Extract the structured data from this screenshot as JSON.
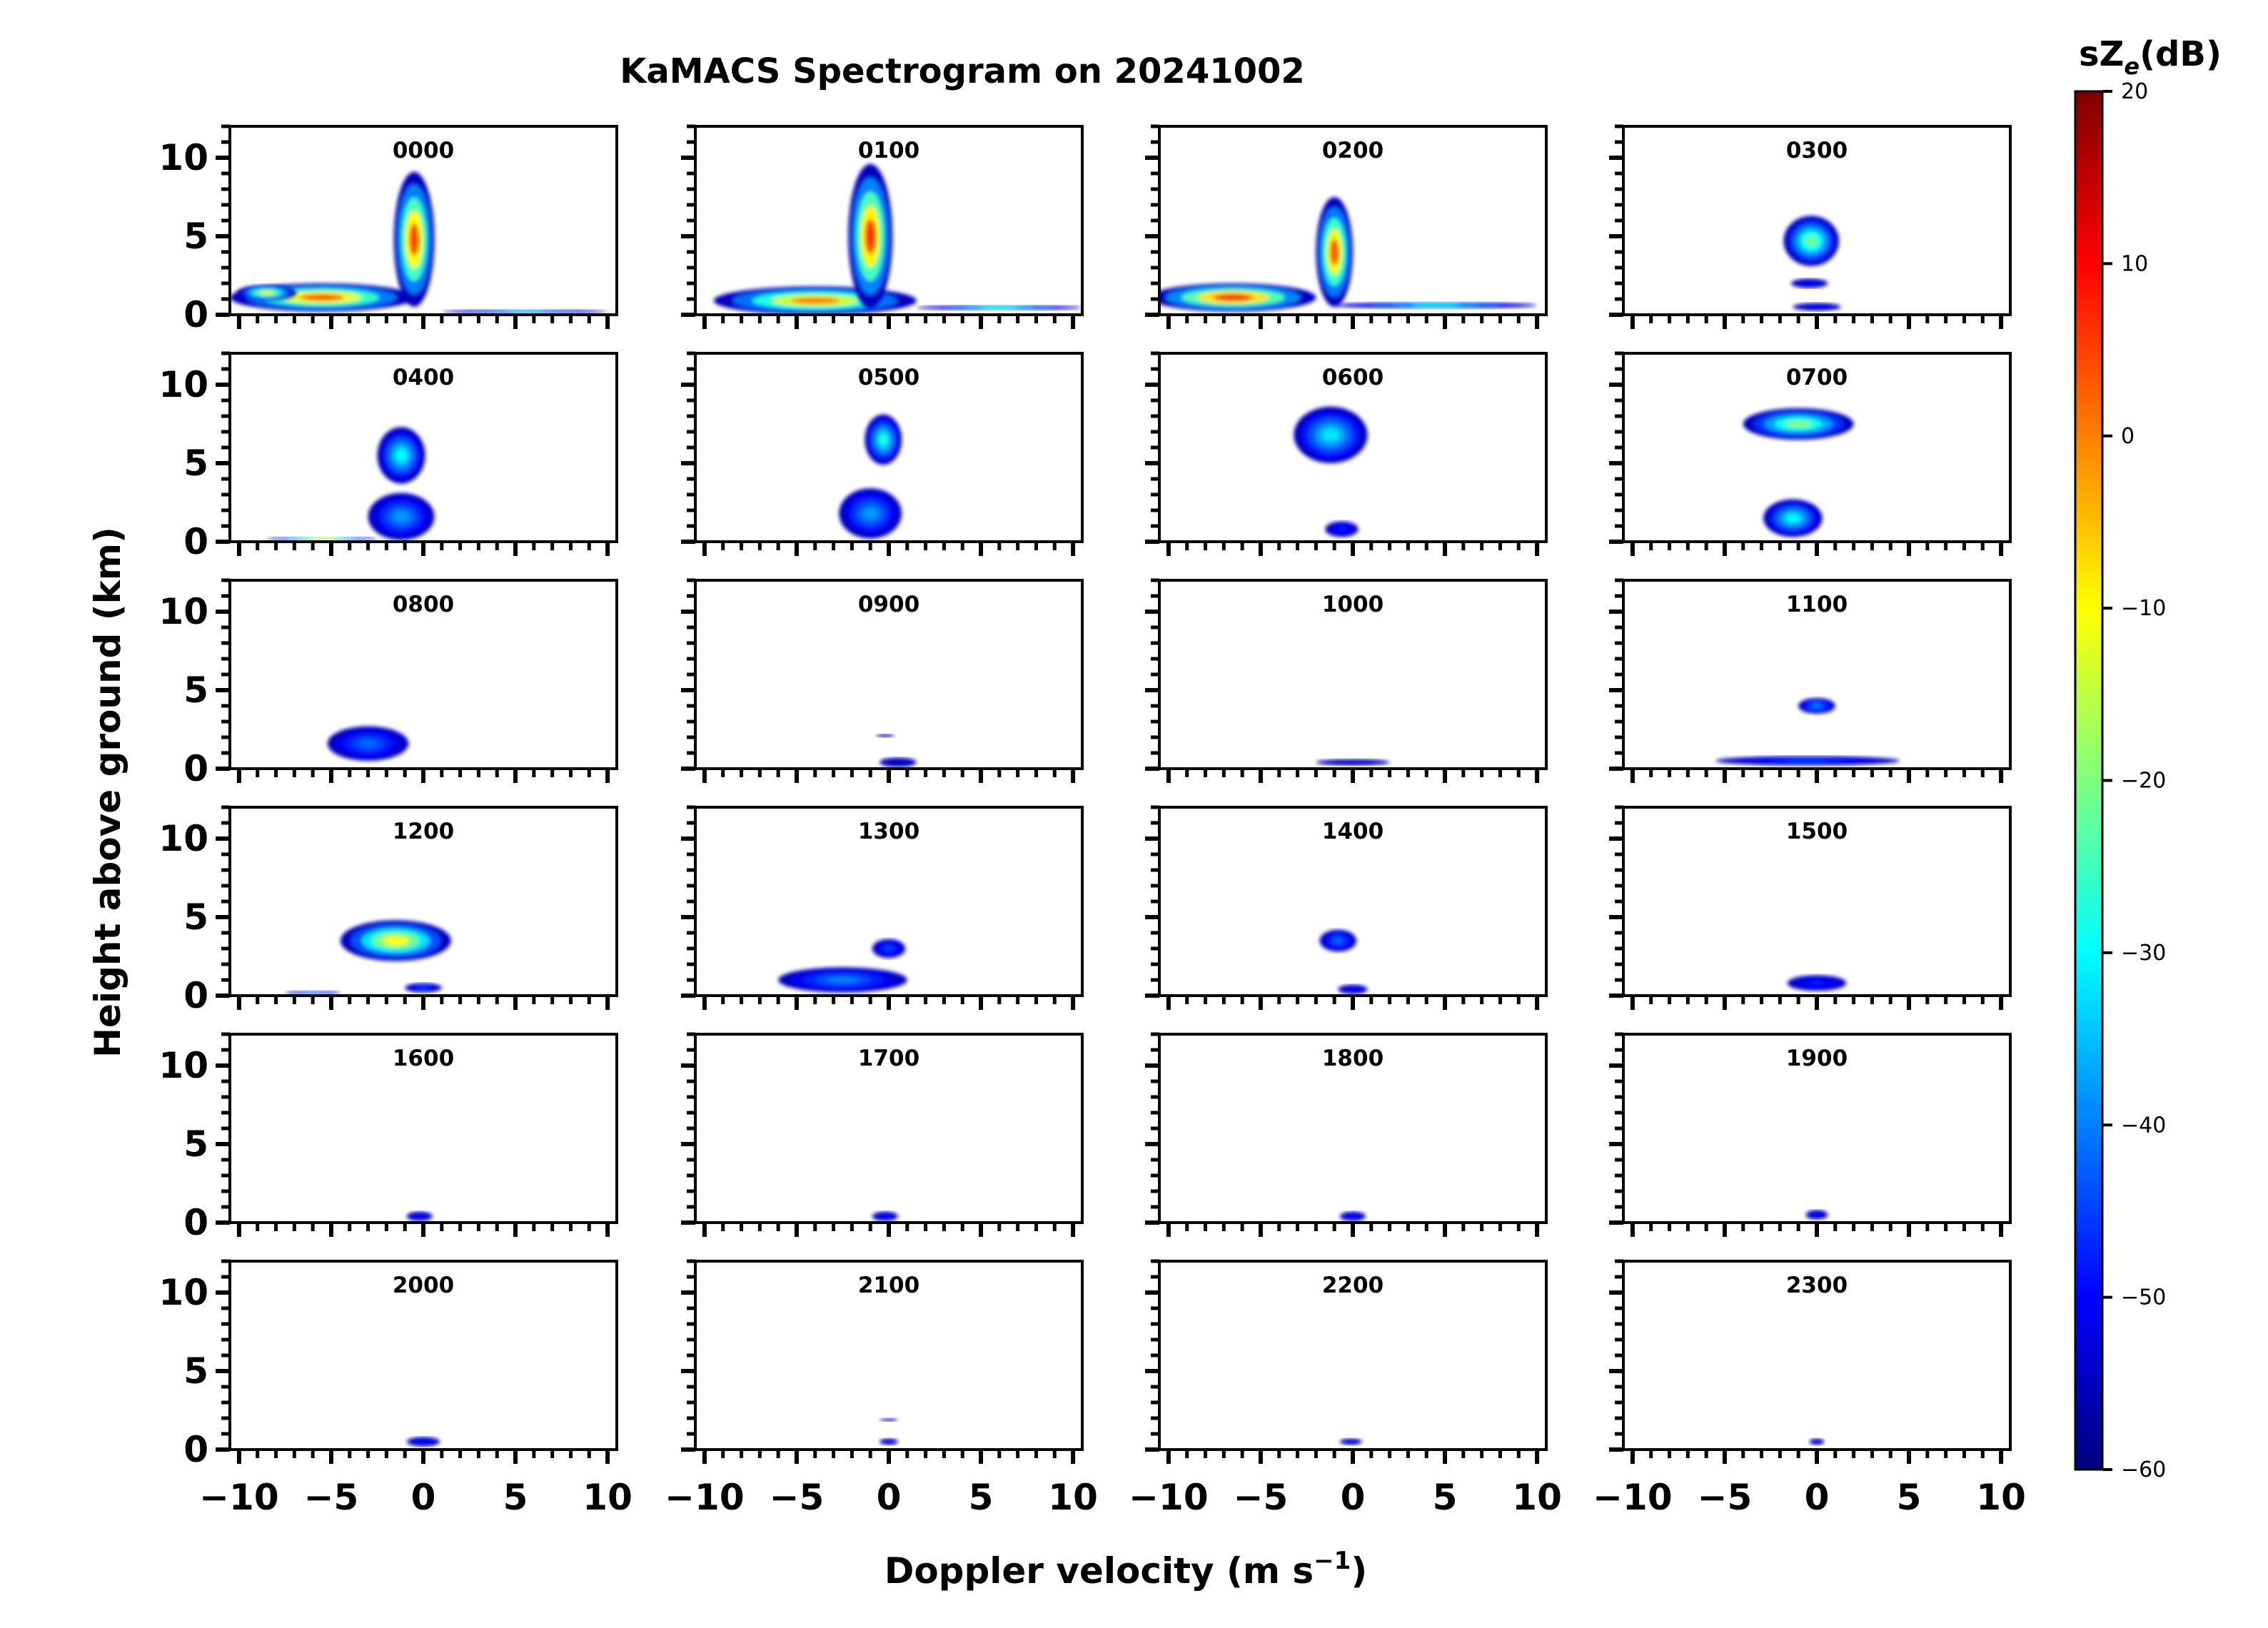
{
  "title": "KaMACS Spectrogram on 20241002",
  "xlabel_main": "Doppler velocity (m s",
  "xlabel_sup": "−1",
  "xlabel_close": ")",
  "ylabel": "Height above ground (km)",
  "colorbar": {
    "label_main": "sZ",
    "label_sub": "e",
    "label_unit": "(dB)",
    "range": [
      -60,
      20
    ],
    "ticks": [
      "20",
      "10",
      "0",
      "−10",
      "−20",
      "−30",
      "−40",
      "−50",
      "−60"
    ],
    "colormap": "jet"
  },
  "chart_data": {
    "type": "heatmap",
    "title": "KaMACS Spectrogram on 20241002",
    "xlabel": "Doppler velocity (m s−1)",
    "ylabel": "Height above ground (km)",
    "xlim": [
      -10.5,
      10.5
    ],
    "ylim": [
      0,
      12
    ],
    "x_ticks": [
      "−10",
      "−5",
      "0",
      "5",
      "10"
    ],
    "y_ticks": [
      "0",
      "5",
      "10"
    ],
    "colorbar_label": "sZe(dB)",
    "colorbar_range": [
      -60,
      20
    ],
    "panels": [
      {
        "label": "0000",
        "blobs": [
          {
            "v": -5.5,
            "h": 1.1,
            "rv": 5.0,
            "rh": 0.9,
            "z": 3
          },
          {
            "v": -0.5,
            "h": 4.8,
            "rv": 1.1,
            "rh": 4.3,
            "z": 5
          },
          {
            "v": -8.5,
            "h": 1.4,
            "rv": 1.6,
            "rh": 0.5,
            "z": -12
          },
          {
            "v": 5.5,
            "h": 0.2,
            "rv": 4.5,
            "rh": 0.12,
            "z": -35
          }
        ]
      },
      {
        "label": "0100",
        "blobs": [
          {
            "v": -4.0,
            "h": 0.9,
            "rv": 5.5,
            "rh": 0.9,
            "z": 0
          },
          {
            "v": -1.0,
            "h": 5.0,
            "rv": 1.2,
            "rh": 4.6,
            "z": 6
          },
          {
            "v": 6.0,
            "h": 0.45,
            "rv": 4.5,
            "rh": 0.15,
            "z": -30
          }
        ]
      },
      {
        "label": "0200",
        "blobs": [
          {
            "v": -6.5,
            "h": 1.1,
            "rv": 4.5,
            "rh": 0.9,
            "z": 8
          },
          {
            "v": -1.0,
            "h": 4.0,
            "rv": 1.0,
            "rh": 3.5,
            "z": 3
          },
          {
            "v": 4.5,
            "h": 0.6,
            "rv": 5.5,
            "rh": 0.2,
            "z": -30
          }
        ]
      },
      {
        "label": "0300",
        "blobs": [
          {
            "v": -0.3,
            "h": 4.7,
            "rv": 1.5,
            "rh": 1.6,
            "z": -22
          },
          {
            "v": -0.4,
            "h": 2.0,
            "rv": 1.0,
            "rh": 0.3,
            "z": -50
          },
          {
            "v": 0.0,
            "h": 0.5,
            "rv": 1.3,
            "rh": 0.25,
            "z": -52
          }
        ]
      },
      {
        "label": "0400",
        "blobs": [
          {
            "v": -1.2,
            "h": 5.5,
            "rv": 1.3,
            "rh": 1.8,
            "z": -30
          },
          {
            "v": -1.2,
            "h": 1.6,
            "rv": 1.8,
            "rh": 1.5,
            "z": -38
          },
          {
            "v": -5.5,
            "h": 0.2,
            "rv": 3.0,
            "rh": 0.1,
            "z": -15
          }
        ]
      },
      {
        "label": "0500",
        "blobs": [
          {
            "v": -0.3,
            "h": 6.5,
            "rv": 1.0,
            "rh": 1.6,
            "z": -28
          },
          {
            "v": -1.0,
            "h": 1.8,
            "rv": 1.7,
            "rh": 1.6,
            "z": -38
          }
        ]
      },
      {
        "label": "0600",
        "blobs": [
          {
            "v": -1.2,
            "h": 6.8,
            "rv": 2.0,
            "rh": 1.8,
            "z": -32
          },
          {
            "v": -0.6,
            "h": 0.8,
            "rv": 0.9,
            "rh": 0.5,
            "z": -48
          }
        ]
      },
      {
        "label": "0700",
        "blobs": [
          {
            "v": -1.0,
            "h": 7.5,
            "rv": 3.0,
            "rh": 1.0,
            "z": -20
          },
          {
            "v": -1.3,
            "h": 1.5,
            "rv": 1.6,
            "rh": 1.2,
            "z": -30
          }
        ]
      },
      {
        "label": "0800",
        "blobs": [
          {
            "v": -3.0,
            "h": 1.6,
            "rv": 2.2,
            "rh": 1.1,
            "z": -42
          }
        ]
      },
      {
        "label": "0900",
        "blobs": [
          {
            "v": 0.5,
            "h": 0.4,
            "rv": 1.0,
            "rh": 0.3,
            "z": -55
          },
          {
            "v": -0.2,
            "h": 2.1,
            "rv": 0.5,
            "rh": 0.1,
            "z": -55
          }
        ]
      },
      {
        "label": "1000",
        "blobs": [
          {
            "v": 0.0,
            "h": 0.4,
            "rv": 2.0,
            "rh": 0.2,
            "z": -55
          }
        ]
      },
      {
        "label": "1100",
        "blobs": [
          {
            "v": 0.0,
            "h": 4.0,
            "rv": 1.0,
            "rh": 0.5,
            "z": -40
          },
          {
            "v": -0.5,
            "h": 0.5,
            "rv": 5.0,
            "rh": 0.3,
            "z": -45
          }
        ]
      },
      {
        "label": "1200",
        "blobs": [
          {
            "v": -1.5,
            "h": 3.5,
            "rv": 3.0,
            "rh": 1.3,
            "z": -10
          },
          {
            "v": -6.0,
            "h": 0.2,
            "rv": 1.5,
            "rh": 0.1,
            "z": -40
          },
          {
            "v": 0.0,
            "h": 0.5,
            "rv": 1.0,
            "rh": 0.3,
            "z": -45
          }
        ]
      },
      {
        "label": "1300",
        "blobs": [
          {
            "v": -2.5,
            "h": 1.0,
            "rv": 3.5,
            "rh": 0.8,
            "z": -40
          },
          {
            "v": 0.0,
            "h": 3.0,
            "rv": 0.9,
            "rh": 0.6,
            "z": -45
          }
        ]
      },
      {
        "label": "1400",
        "blobs": [
          {
            "v": -0.8,
            "h": 3.5,
            "rv": 1.0,
            "rh": 0.7,
            "z": -42
          },
          {
            "v": 0.0,
            "h": 0.4,
            "rv": 0.8,
            "rh": 0.3,
            "z": -50
          }
        ]
      },
      {
        "label": "1500",
        "blobs": [
          {
            "v": 0.0,
            "h": 0.8,
            "rv": 1.6,
            "rh": 0.5,
            "z": -48
          }
        ]
      },
      {
        "label": "1600",
        "blobs": [
          {
            "v": -0.2,
            "h": 0.4,
            "rv": 0.7,
            "rh": 0.3,
            "z": -50
          }
        ]
      },
      {
        "label": "1700",
        "blobs": [
          {
            "v": -0.2,
            "h": 0.4,
            "rv": 0.7,
            "rh": 0.3,
            "z": -50
          }
        ]
      },
      {
        "label": "1800",
        "blobs": [
          {
            "v": 0.0,
            "h": 0.4,
            "rv": 0.7,
            "rh": 0.3,
            "z": -50
          }
        ]
      },
      {
        "label": "1900",
        "blobs": [
          {
            "v": 0.0,
            "h": 0.5,
            "rv": 0.6,
            "rh": 0.3,
            "z": -50
          }
        ]
      },
      {
        "label": "2000",
        "blobs": [
          {
            "v": 0.0,
            "h": 0.5,
            "rv": 0.9,
            "rh": 0.3,
            "z": -50
          }
        ]
      },
      {
        "label": "2100",
        "blobs": [
          {
            "v": 0.0,
            "h": 0.5,
            "rv": 0.5,
            "rh": 0.2,
            "z": -52
          },
          {
            "v": 0.0,
            "h": 1.9,
            "rv": 0.5,
            "rh": 0.08,
            "z": -52
          }
        ]
      },
      {
        "label": "2200",
        "blobs": [
          {
            "v": -0.1,
            "h": 0.5,
            "rv": 0.6,
            "rh": 0.2,
            "z": -52
          }
        ]
      },
      {
        "label": "2300",
        "blobs": [
          {
            "v": 0.0,
            "h": 0.5,
            "rv": 0.4,
            "rh": 0.2,
            "z": -52
          }
        ]
      }
    ]
  }
}
